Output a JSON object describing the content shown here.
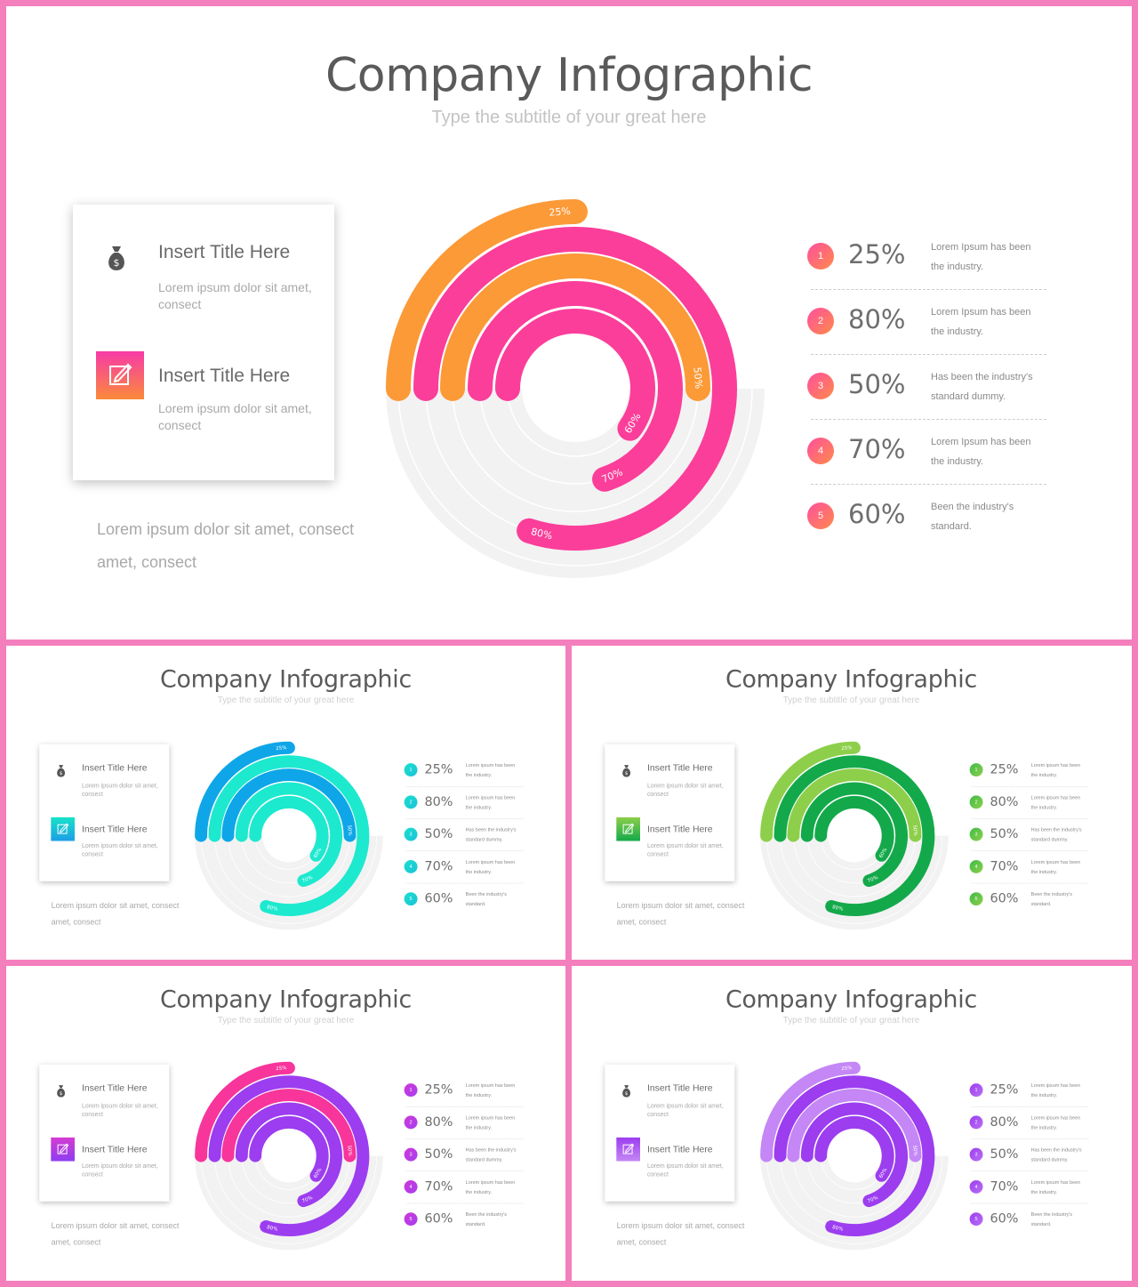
{
  "slides": [
    {
      "id": "main",
      "title": "Company Infographic",
      "subtitle": "Type the subtitle of your great here",
      "card": {
        "item1_title": "Insert Title Here",
        "item1_text": "Lorem ipsum dolor sit amet, consect",
        "item1_icon": "money-bag-icon",
        "item2_title": "Insert Title Here",
        "item2_text": "Lorem ipsum dolor sit amet, consect",
        "item2_icon": "edit-icon"
      },
      "footnote": "Lorem ipsum dolor sit amet, consect amet, consect",
      "colors": {
        "outer": "#fb9a37",
        "inner": "#fb3e9a",
        "icon_grad": [
          "#f73aa8",
          "#fa8a3a"
        ],
        "bullet": [
          "#ff4f9e",
          "#ff8a4a"
        ]
      },
      "legend": [
        {
          "num": "1",
          "pct": "25%",
          "desc": "Lorem Ipsum has been the industry."
        },
        {
          "num": "2",
          "pct": "80%",
          "desc": "Lorem Ipsum has been the industry."
        },
        {
          "num": "3",
          "pct": "50%",
          "desc": "Has been the industry's standard dummy."
        },
        {
          "num": "4",
          "pct": "70%",
          "desc": "Lorem Ipsum has been the industry."
        },
        {
          "num": "5",
          "pct": "60%",
          "desc": "Been the industry's standard."
        }
      ]
    },
    {
      "id": "blue",
      "title": "Company Infographic",
      "subtitle": "Type the subtitle of your great here",
      "card": {
        "item1_title": "Insert Title Here",
        "item1_text": "Lorem ipsum dolor sit amet, consect",
        "item1_icon": "money-bag-icon",
        "item2_title": "Insert Title Here",
        "item2_text": "Lorem ipsum dolor sit amet, consect",
        "item2_icon": "edit-icon"
      },
      "footnote": "Lorem ipsum dolor sit amet, consect amet, consect",
      "colors": {
        "outer": "#0ea6e8",
        "inner": "#1de9cf",
        "icon_grad": [
          "#17e2c8",
          "#1d9ee6"
        ],
        "bullet": [
          "#18e0cc",
          "#1cc2da"
        ]
      },
      "legend": [
        {
          "num": "1",
          "pct": "25%",
          "desc": "Lorem ipsum has been the industry."
        },
        {
          "num": "2",
          "pct": "80%",
          "desc": "Lorem ipsum has been the industry."
        },
        {
          "num": "3",
          "pct": "50%",
          "desc": "Has been the industry's standard dummy."
        },
        {
          "num": "4",
          "pct": "70%",
          "desc": "Lorem ipsum has been the industry."
        },
        {
          "num": "5",
          "pct": "60%",
          "desc": "Been the industry's standard."
        }
      ]
    },
    {
      "id": "green",
      "title": "Company Infographic",
      "subtitle": "Type the subtitle of your great here",
      "card": {
        "item1_title": "Insert Title Here",
        "item1_text": "Lorem ipsum dolor sit amet, consect",
        "item1_icon": "money-bag-icon",
        "item2_title": "Insert Title Here",
        "item2_text": "Lorem ipsum dolor sit amet, consect",
        "item2_icon": "edit-icon"
      },
      "footnote": "Lorem ipsum dolor sit amet, consect amet, consect",
      "colors": {
        "outer": "#8dcf4a",
        "inner": "#13a94a",
        "icon_grad": [
          "#8dcf4a",
          "#13a94a"
        ],
        "bullet": [
          "#3dbb48",
          "#8dcf4a"
        ]
      },
      "legend": [
        {
          "num": "1",
          "pct": "25%",
          "desc": "Lorem ipsum has been the industry."
        },
        {
          "num": "2",
          "pct": "80%",
          "desc": "Lorem ipsum has been the industry."
        },
        {
          "num": "3",
          "pct": "50%",
          "desc": "Has been the industry's standard dummy."
        },
        {
          "num": "4",
          "pct": "70%",
          "desc": "Lorem ipsum has been the industry."
        },
        {
          "num": "5",
          "pct": "60%",
          "desc": "Been the industry's standard."
        }
      ]
    },
    {
      "id": "pink",
      "title": "Company Infographic",
      "subtitle": "Type the subtitle of your great here",
      "card": {
        "item1_title": "Insert Title Here",
        "item1_text": "Lorem ipsum dolor sit amet, consect",
        "item1_icon": "money-bag-icon",
        "item2_title": "Insert Title Here",
        "item2_text": "Lorem ipsum dolor sit amet, consect",
        "item2_icon": "edit-icon"
      },
      "footnote": "Lorem ipsum dolor sit amet, consect amet, consect",
      "colors": {
        "outer": "#f7359b",
        "inner": "#9c3df0",
        "icon_grad": [
          "#d53bd2",
          "#8e3df0"
        ],
        "bullet": [
          "#cf38d6",
          "#a63ff0"
        ]
      },
      "legend": [
        {
          "num": "1",
          "pct": "25%",
          "desc": "Lorem ipsum has been the industry."
        },
        {
          "num": "2",
          "pct": "80%",
          "desc": "Lorem ipsum has been the industry."
        },
        {
          "num": "3",
          "pct": "50%",
          "desc": "Has been the industry's standard dummy."
        },
        {
          "num": "4",
          "pct": "70%",
          "desc": "Lorem ipsum has been the industry."
        },
        {
          "num": "5",
          "pct": "60%",
          "desc": "Been the industry's standard."
        }
      ]
    },
    {
      "id": "purple",
      "title": "Company Infographic",
      "subtitle": "Type the subtitle of your great here",
      "card": {
        "item1_title": "Insert Title Here",
        "item1_text": "Lorem ipsum dolor sit amet, consect",
        "item1_icon": "money-bag-icon",
        "item2_title": "Insert Title Here",
        "item2_text": "Lorem ipsum dolor sit amet, consect",
        "item2_icon": "edit-icon"
      },
      "footnote": "Lorem ipsum dolor sit amet, consect amet, consect",
      "colors": {
        "outer": "#c487f5",
        "inner": "#9c3df0",
        "icon_grad": [
          "#9c3df0",
          "#c487f5"
        ],
        "bullet": [
          "#9c3df0",
          "#b870f4"
        ]
      },
      "legend": [
        {
          "num": "1",
          "pct": "25%",
          "desc": "Lorem ipsum has been the industry."
        },
        {
          "num": "2",
          "pct": "80%",
          "desc": "Lorem ipsum has been the industry."
        },
        {
          "num": "3",
          "pct": "50%",
          "desc": "Has been the industry's standard dummy."
        },
        {
          "num": "4",
          "pct": "70%",
          "desc": "Lorem ipsum has been the industry."
        },
        {
          "num": "5",
          "pct": "60%",
          "desc": "Been the industry's standard."
        }
      ]
    }
  ],
  "chart_data": {
    "type": "radial-bar",
    "rings": [
      {
        "label": "25%",
        "value": 25
      },
      {
        "label": "80%",
        "value": 80
      },
      {
        "label": "50%",
        "value": 50
      },
      {
        "label": "70%",
        "value": 70
      },
      {
        "label": "60%",
        "value": 60
      }
    ]
  }
}
